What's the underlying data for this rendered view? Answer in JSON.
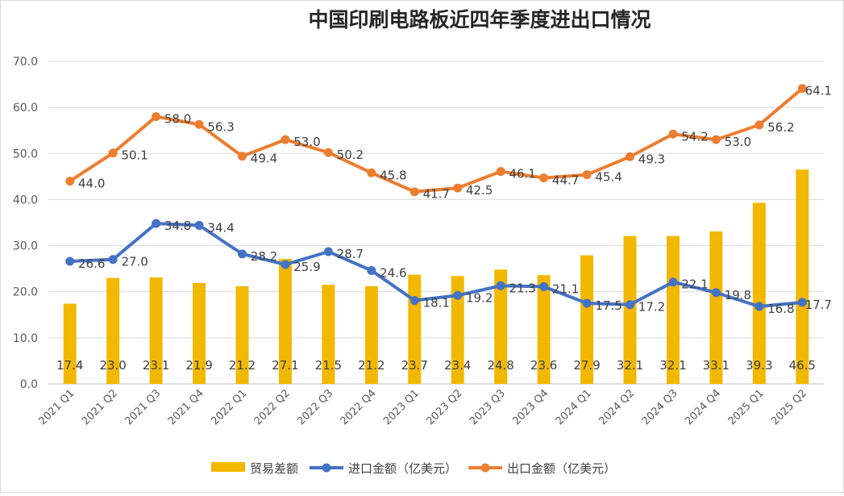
{
  "chart_data": {
    "type": "bar+line",
    "title": "中国印刷电路板近四年季度进出口情况",
    "categories": [
      "2021 Q1",
      "2021 Q2",
      "2021 Q3",
      "2021 Q4",
      "2022 Q1",
      "2022 Q2",
      "2022 Q3",
      "2022 Q4",
      "2023 Q1",
      "2023 Q2",
      "2023 Q3",
      "2023 Q4",
      "2024 Q1",
      "2024 Q2",
      "2024 Q3",
      "2024 Q4",
      "2025 Q1",
      "2025 Q2"
    ],
    "y_ticks": [
      "0.0",
      "10.0",
      "20.0",
      "30.0",
      "40.0",
      "50.0",
      "60.0",
      "70.0"
    ],
    "ylim": [
      0,
      70
    ],
    "grid": true,
    "legend_position": "bottom",
    "series": [
      {
        "name": "贸易差额",
        "kind": "bar",
        "color": "#F2B800",
        "values": [
          17.4,
          23.0,
          23.1,
          21.9,
          21.2,
          27.1,
          21.5,
          21.2,
          23.7,
          23.4,
          24.8,
          23.6,
          27.9,
          32.1,
          32.1,
          33.1,
          39.3,
          46.5
        ],
        "labels": [
          "17.4",
          "23.0",
          "23.1",
          "21.9",
          "21.2",
          "27.1",
          "21.5",
          "21.2",
          "23.7",
          "23.4",
          "24.8",
          "23.6",
          "27.9",
          "32.1",
          "32.1",
          "33.1",
          "39.3",
          "46.5"
        ]
      },
      {
        "name": "进口金额（亿美元）",
        "kind": "line",
        "color": "#4472C4",
        "values": [
          26.6,
          27.0,
          34.8,
          34.4,
          28.2,
          25.9,
          28.7,
          24.6,
          18.1,
          19.2,
          21.3,
          21.1,
          17.5,
          17.2,
          22.1,
          19.8,
          16.8,
          17.7
        ],
        "labels": [
          "26.6",
          "27.0",
          "34.8",
          "34.4",
          "28.2",
          "25.9",
          "28.7",
          "24.6",
          "18.1",
          "19.2",
          "21.3",
          "21.1",
          "17.5",
          "17.2",
          "22.1",
          "19.8",
          "16.8",
          "17.7"
        ]
      },
      {
        "name": "出口金额（亿美元）",
        "kind": "line",
        "color": "#ED7D31",
        "values": [
          44.0,
          50.1,
          58.0,
          56.3,
          49.4,
          53.0,
          50.2,
          45.8,
          41.7,
          42.5,
          46.1,
          44.7,
          45.4,
          49.3,
          54.2,
          53.0,
          56.2,
          64.1
        ],
        "labels": [
          "44.0",
          "50.1",
          "58.0",
          "56.3",
          "49.4",
          "53.0",
          "50.2",
          "45.8",
          "41.7",
          "42.5",
          "46.1",
          "44.7",
          "45.4",
          "49.3",
          "54.2",
          "53.0",
          "56.2",
          "64.1"
        ]
      }
    ]
  }
}
